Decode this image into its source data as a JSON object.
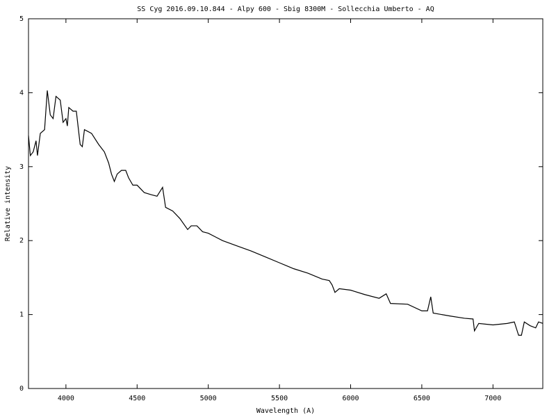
{
  "chart_data": {
    "type": "line",
    "title": "SS Cyg 2016.09.10.844 - Alpy 600 - Sbig 8300M  - Sollecchia Umberto - AQ",
    "x_label": "Wavelength (A)",
    "y_label": "Relative intensity",
    "color": "#000000",
    "xlim": [
      3737,
      7350
    ],
    "ylim": [
      0,
      5
    ],
    "xticks": [
      4000,
      4500,
      5000,
      5500,
      6000,
      6500,
      7000
    ],
    "yticks": [
      0,
      1,
      2,
      3,
      4,
      5
    ],
    "x": [
      3737,
      3750,
      3770,
      3790,
      3800,
      3820,
      3850,
      3869,
      3890,
      3910,
      3930,
      3960,
      3980,
      4000,
      4010,
      4020,
      4050,
      4073,
      4100,
      4115,
      4130,
      4180,
      4230,
      4270,
      4300,
      4320,
      4340,
      4360,
      4390,
      4420,
      4440,
      4470,
      4500,
      4550,
      4600,
      4640,
      4679,
      4700,
      4750,
      4800,
      4855,
      4880,
      4920,
      4960,
      5000,
      5050,
      5100,
      5200,
      5300,
      5400,
      5500,
      5600,
      5700,
      5800,
      5850,
      5870,
      5890,
      5920,
      6000,
      6100,
      6200,
      6250,
      6280,
      6400,
      6500,
      6540,
      6563,
      6580,
      6700,
      6800,
      6860,
      6870,
      6900,
      7000,
      7100,
      7150,
      7180,
      7200,
      7220,
      7260,
      7300,
      7320,
      7350
    ],
    "values": [
      3.42,
      3.15,
      3.2,
      3.35,
      3.15,
      3.45,
      3.5,
      4.03,
      3.7,
      3.65,
      3.95,
      3.9,
      3.6,
      3.65,
      3.55,
      3.8,
      3.75,
      3.75,
      3.3,
      3.27,
      3.5,
      3.45,
      3.3,
      3.2,
      3.05,
      2.9,
      2.8,
      2.9,
      2.95,
      2.95,
      2.85,
      2.75,
      2.75,
      2.65,
      2.62,
      2.6,
      2.72,
      2.45,
      2.4,
      2.3,
      2.15,
      2.2,
      2.2,
      2.12,
      2.1,
      2.05,
      2.0,
      1.93,
      1.86,
      1.78,
      1.7,
      1.62,
      1.56,
      1.48,
      1.46,
      1.4,
      1.3,
      1.35,
      1.33,
      1.27,
      1.22,
      1.28,
      1.15,
      1.14,
      1.05,
      1.05,
      1.24,
      1.02,
      0.98,
      0.95,
      0.94,
      0.78,
      0.88,
      0.86,
      0.88,
      0.9,
      0.72,
      0.72,
      0.9,
      0.85,
      0.82,
      0.9,
      0.88
    ]
  }
}
